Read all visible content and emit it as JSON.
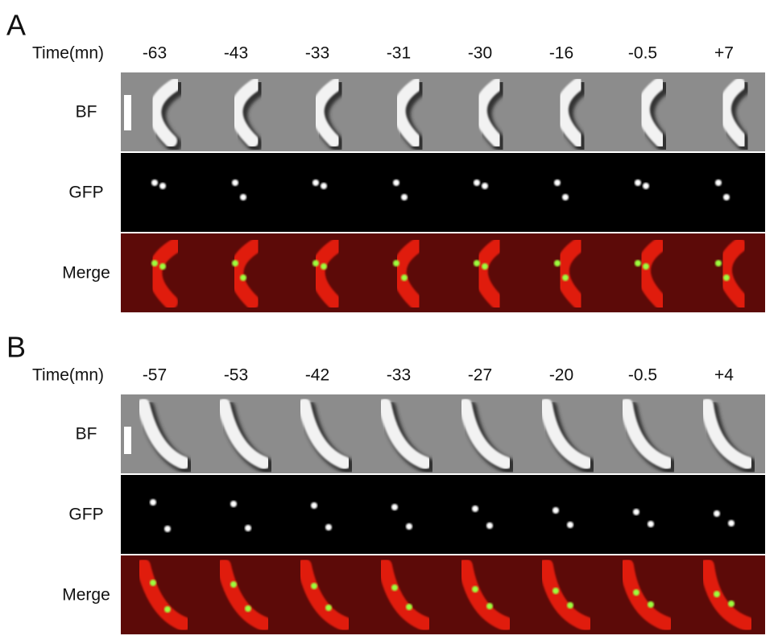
{
  "panels": [
    {
      "label": "A",
      "time_label": "Time(mn)",
      "times": [
        "-63",
        "-43",
        "-33",
        "-31",
        "-30",
        "-16",
        "-0.5",
        "+7"
      ],
      "rows": [
        "BF",
        "GFP",
        "Merge"
      ]
    },
    {
      "label": "B",
      "time_label": "Time(mn)",
      "times": [
        "-57",
        "-53",
        "-42",
        "-33",
        "-27",
        "-20",
        "-0.5",
        "+4"
      ],
      "rows": [
        "BF",
        "GFP",
        "Merge"
      ]
    }
  ]
}
